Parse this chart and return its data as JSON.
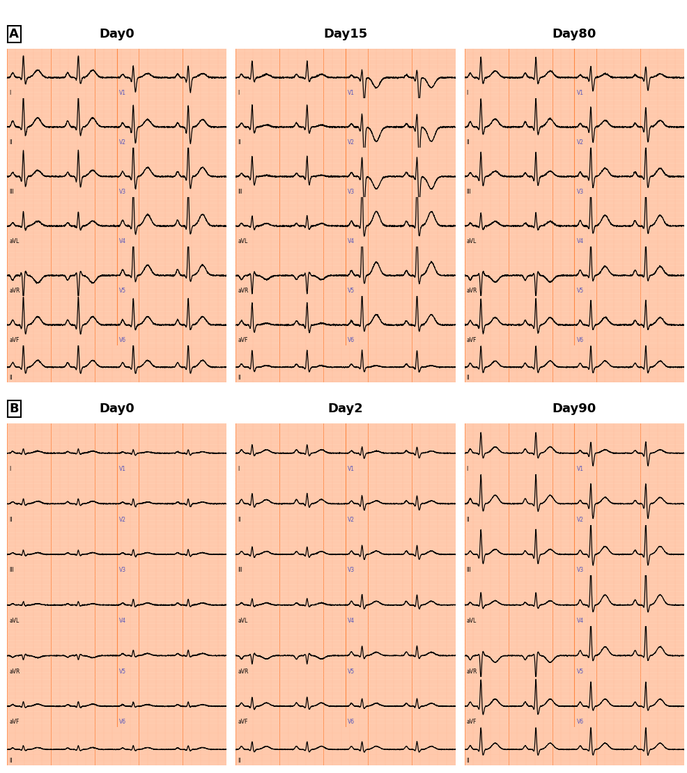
{
  "figure_width": 9.86,
  "figure_height": 11.1,
  "dpi": 100,
  "bg_color": "#ffffff",
  "ecg_paper_color": "#FFCDB0",
  "ecg_major_grid_color": "#FF8844",
  "ecg_minor_grid_color": "#FFBB99",
  "ecg_line_color": "#000000",
  "label_color": "#5555BB",
  "title_color": "#000000",
  "panel_A_label": "A",
  "panel_B_label": "B",
  "row_A_days": [
    "Day0",
    "Day15",
    "Day80"
  ],
  "row_B_days": [
    "Day0",
    "Day2",
    "Day90"
  ],
  "lead_labels_left": [
    "I",
    "II",
    "III",
    "aVL",
    "aVR",
    "aVF"
  ],
  "lead_labels_right": [
    "V1",
    "V2",
    "V3",
    "V4",
    "V5",
    "V6"
  ],
  "bottom_lead": "II"
}
